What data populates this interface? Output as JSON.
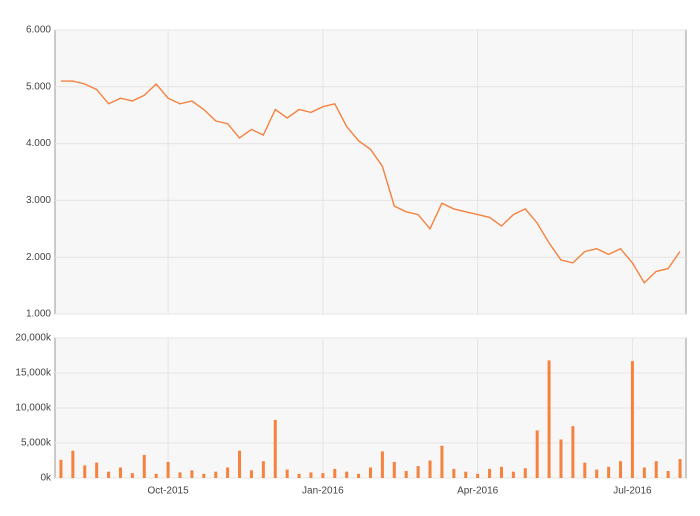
{
  "chart_data": [
    {
      "type": "line",
      "color": "#f5823f",
      "values": [
        5.1,
        5.1,
        5.05,
        4.95,
        4.7,
        4.8,
        4.75,
        4.85,
        5.05,
        4.8,
        4.7,
        4.75,
        4.6,
        4.4,
        4.35,
        4.1,
        4.25,
        4.15,
        4.6,
        4.45,
        4.6,
        4.55,
        4.65,
        4.7,
        4.3,
        4.05,
        3.9,
        3.6,
        2.9,
        2.8,
        2.75,
        2.5,
        2.95,
        2.85,
        2.8,
        2.75,
        2.7,
        2.55,
        2.75,
        2.85,
        2.6,
        2.25,
        1.95,
        1.9,
        2.1,
        2.15,
        2.05,
        2.15,
        1.9,
        1.55,
        1.75,
        1.8,
        2.1
      ],
      "ylim": [
        1,
        6
      ],
      "yticks": [
        {
          "value": 1,
          "label": "1.000"
        },
        {
          "value": 2,
          "label": "2.000"
        },
        {
          "value": 3,
          "label": "3.000"
        },
        {
          "value": 4,
          "label": "4.000"
        },
        {
          "value": 5,
          "label": "5.000"
        },
        {
          "value": 6,
          "label": "6.000"
        }
      ],
      "grid": true
    },
    {
      "type": "bar",
      "color": "#f5823f",
      "categories": [
        null,
        null,
        null,
        null,
        null,
        null,
        null,
        null,
        null,
        "Oct-2015",
        null,
        null,
        null,
        null,
        null,
        null,
        null,
        null,
        null,
        null,
        null,
        null,
        "Jan-2016",
        null,
        null,
        null,
        null,
        null,
        null,
        null,
        null,
        null,
        null,
        null,
        null,
        "Apr-2016",
        null,
        null,
        null,
        null,
        null,
        null,
        null,
        null,
        null,
        null,
        null,
        null,
        "Jul-2016",
        null,
        null,
        null,
        null
      ],
      "values": [
        2600,
        3900,
        1800,
        2200,
        900,
        1500,
        700,
        3300,
        600,
        2300,
        800,
        1100,
        600,
        900,
        1500,
        3900,
        1100,
        2400,
        8300,
        1200,
        600,
        800,
        700,
        1300,
        900,
        600,
        1500,
        3800,
        2300,
        1000,
        1700,
        2500,
        4600,
        1300,
        900,
        600,
        1300,
        1600,
        900,
        1400,
        6800,
        16800,
        5500,
        7400,
        2200,
        1200,
        1600,
        2400,
        16700,
        1500,
        2400,
        1000,
        2700
      ],
      "ylim": [
        0,
        20000
      ],
      "yticks": [
        {
          "value": 0,
          "label": "0k"
        },
        {
          "value": 5000,
          "label": "5,000k"
        },
        {
          "value": 10000,
          "label": "10,000k"
        },
        {
          "value": 15000,
          "label": "15,000k"
        },
        {
          "value": 20000,
          "label": "20,000k"
        }
      ],
      "grid": true
    }
  ]
}
